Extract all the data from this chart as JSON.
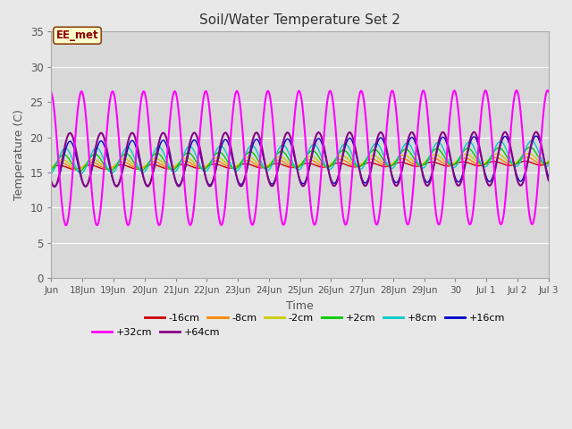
{
  "title": "Soil/Water Temperature Set 2",
  "xlabel": "Time",
  "ylabel": "Temperature (C)",
  "annotation": "EE_met",
  "ylim": [
    0,
    35
  ],
  "yticks": [
    0,
    5,
    10,
    15,
    20,
    25,
    30,
    35
  ],
  "background_color": "#e8e8e8",
  "plot_bg_color": "#d8d8d8",
  "grid_color": "#ffffff",
  "tick_label_color": "#555555",
  "x_tick_labels": [
    "Jun",
    "18Jun",
    "19Jun",
    "20Jun",
    "21Jun",
    "22Jun",
    "23Jun",
    "24Jun",
    "25Jun",
    "26Jun",
    "27Jun",
    "28Jun",
    "29Jun",
    "30",
    "Jul 1",
    "Jul 2",
    "Jul 3"
  ],
  "x_tick_positions": [
    17,
    18,
    19,
    20,
    21,
    22,
    23,
    24,
    25,
    26,
    27,
    28,
    29,
    30,
    31,
    32,
    33
  ],
  "series": [
    {
      "label": "-16cm",
      "color": "#cc0000",
      "amplitude": 0.3,
      "base": 15.7,
      "trend": 0.04,
      "phase": 0.0
    },
    {
      "label": "-8cm",
      "color": "#ff8800",
      "amplitude": 0.5,
      "base": 15.9,
      "trend": 0.05,
      "phase": 0.05
    },
    {
      "label": "-2cm",
      "color": "#cccc00",
      "amplitude": 0.7,
      "base": 16.1,
      "trend": 0.06,
      "phase": 0.1
    },
    {
      "label": "+2cm",
      "color": "#00cc00",
      "amplitude": 1.2,
      "base": 16.3,
      "trend": 0.07,
      "phase": 0.15
    },
    {
      "label": "+8cm",
      "color": "#00cccc",
      "amplitude": 1.8,
      "base": 16.6,
      "trend": 0.07,
      "phase": 0.2
    },
    {
      "label": "+16cm",
      "color": "#0000cc",
      "amplitude": 3.2,
      "base": 16.2,
      "trend": 0.05,
      "phase": 0.35
    },
    {
      "label": "+32cm",
      "color": "#ff00ff",
      "amplitude": 9.5,
      "base": 17.0,
      "trend": 0.01,
      "phase": 0.72
    },
    {
      "label": "+64cm",
      "color": "#880088",
      "amplitude": 3.8,
      "base": 16.8,
      "trend": 0.01,
      "phase": 1.35
    }
  ]
}
